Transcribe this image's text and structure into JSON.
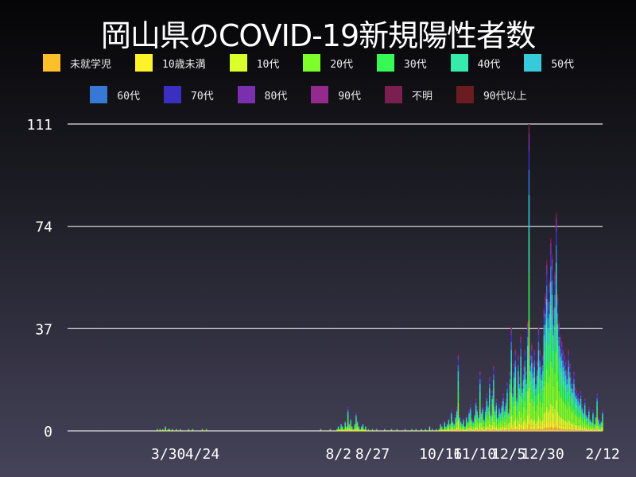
{
  "chart_data": {
    "type": "bar",
    "stacked": true,
    "title": "岡山県のCOVID-19新規陽性者数",
    "series": [
      {
        "name": "未就学児",
        "color": "#ffbf2a"
      },
      {
        "name": "10歳未満",
        "color": "#fff22a"
      },
      {
        "name": "10代",
        "color": "#dbff2a"
      },
      {
        "name": "20代",
        "color": "#7fff2a"
      },
      {
        "name": "30代",
        "color": "#36f955"
      },
      {
        "name": "40代",
        "color": "#36ecad"
      },
      {
        "name": "50代",
        "color": "#36cadb"
      },
      {
        "name": "60代",
        "color": "#3678d4"
      },
      {
        "name": "70代",
        "color": "#3a2fc0"
      },
      {
        "name": "80代",
        "color": "#7a2fae"
      },
      {
        "name": "90代",
        "color": "#942a8e"
      },
      {
        "name": "不明",
        "color": "#7a2050"
      },
      {
        "name": "90代以上",
        "color": "#6a1c20"
      }
    ],
    "x_range": [
      "2020-01-16",
      "2021-02-12"
    ],
    "ylim": [
      0,
      111
    ],
    "yticks": [
      "0",
      "37",
      "74",
      "111"
    ],
    "xticks": [
      [
        "2020-03-30",
        "3/30"
      ],
      [
        "2020-04-24",
        "4/24"
      ],
      [
        "2020-08-02",
        "8/2"
      ],
      [
        "2020-08-27",
        "8/27"
      ],
      [
        "2020-10-16",
        "10/16"
      ],
      [
        "2020-11-10",
        "11/10"
      ],
      [
        "2020-12-05",
        "12/5"
      ],
      [
        "2020-12-30",
        "12/30"
      ],
      [
        "2021-02-12",
        "2/12"
      ]
    ],
    "grid": true,
    "legend_position": "top",
    "daily_totals_sparse": {
      "2020-03-22": 1,
      "2020-03-24": 1,
      "2020-03-26": 1,
      "2020-03-28": 2,
      "2020-03-30": 1,
      "2020-03-31": 1,
      "2020-04-02": 1,
      "2020-04-05": 1,
      "2020-04-08": 1,
      "2020-04-14": 1,
      "2020-04-17": 1,
      "2020-04-24": 1,
      "2020-04-27": 1,
      "2020-07-20": 1,
      "2020-07-27": 1,
      "2020-08-01": 1,
      "2020-08-02": 2,
      "2020-08-03": 1,
      "2020-08-04": 3,
      "2020-08-05": 2,
      "2020-08-06": 1,
      "2020-08-07": 4,
      "2020-08-08": 2,
      "2020-08-09": 9,
      "2020-08-10": 3,
      "2020-08-11": 5,
      "2020-08-12": 2,
      "2020-08-13": 1,
      "2020-08-14": 3,
      "2020-08-15": 7,
      "2020-08-16": 4,
      "2020-08-17": 2,
      "2020-08-18": 1,
      "2020-08-19": 2,
      "2020-08-20": 3,
      "2020-08-21": 1,
      "2020-08-22": 2,
      "2020-08-24": 1,
      "2020-08-27": 1,
      "2020-08-30": 1,
      "2020-09-05": 1,
      "2020-09-10": 1,
      "2020-09-14": 1,
      "2020-09-20": 1,
      "2020-09-25": 1,
      "2020-09-28": 1
    },
    "daily_totals_by_month": {
      "2020-10": [
        0,
        1,
        0,
        0,
        1,
        0,
        0,
        2,
        0,
        1,
        0,
        0,
        1,
        0,
        1,
        3,
        2,
        1,
        4,
        2,
        3,
        5,
        3,
        8,
        4,
        3,
        6,
        9,
        28,
        6,
        4
      ],
      "2020-11": [
        3,
        5,
        2,
        6,
        4,
        8,
        10,
        5,
        4,
        7,
        12,
        9,
        6,
        22,
        8,
        10,
        5,
        9,
        14,
        11,
        20,
        7,
        15,
        24,
        9,
        12,
        6,
        10,
        8,
        11
      ],
      "2020-12": [
        14,
        9,
        12,
        18,
        8,
        22,
        38,
        16,
        25,
        30,
        14,
        28,
        20,
        35,
        18,
        24,
        30,
        22,
        40,
        111,
        28,
        32,
        25,
        30,
        20,
        26,
        38,
        30,
        24,
        28,
        45
      ],
      "2021-01": [
        50,
        62,
        48,
        55,
        70,
        64,
        45,
        58,
        79,
        50,
        40,
        35,
        33,
        30,
        28,
        26,
        22,
        30,
        25,
        20,
        18,
        22,
        16,
        15,
        14,
        12,
        15,
        10,
        8,
        12,
        7
      ],
      "2021-02": [
        6,
        9,
        5,
        4,
        8,
        3,
        6,
        14,
        5,
        3,
        4,
        8
      ]
    }
  }
}
